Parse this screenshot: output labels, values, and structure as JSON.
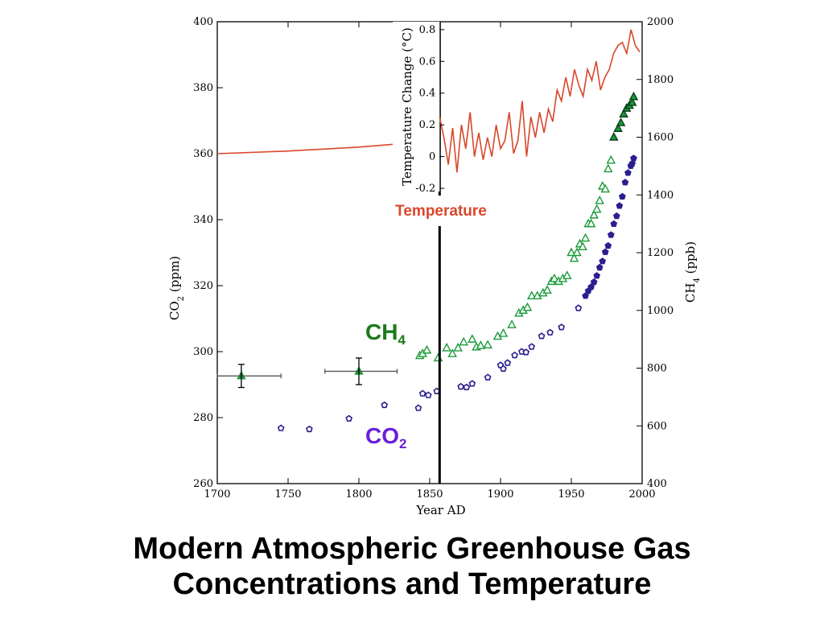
{
  "slide": {
    "title_line1": "Modern Atmospheric Greenhouse Gas",
    "title_line2": "Concentrations and Temperature"
  },
  "chart_data": {
    "type": "scatter",
    "title": "Modern Atmospheric Greenhouse Gas Concentrations and Temperature",
    "xlabel": "Year AD",
    "ylabel_left": "CO2 (ppm)",
    "ylabel_right": "CH4 (ppb)",
    "xlim": [
      1700,
      2000
    ],
    "ylim_left": [
      260,
      400
    ],
    "ylim_right": [
      400,
      2000
    ],
    "x_ticks": [
      "1700",
      "1750",
      "1800",
      "1850",
      "1900",
      "1950",
      "2000"
    ],
    "y_ticks_left": [
      "260",
      "280",
      "300",
      "320",
      "340",
      "360",
      "380",
      "400"
    ],
    "y_ticks_right": [
      "400",
      "600",
      "800",
      "1000",
      "1200",
      "1400",
      "1600",
      "1800",
      "2000"
    ],
    "divider_year": 1857,
    "labels": {
      "ch4": "CH",
      "ch4_sub": "4",
      "co2": "CO",
      "co2_sub": "2",
      "temperature": "Temperature"
    },
    "colors": {
      "co2": "#2b1f8f",
      "co2_label": "#6a1fd8",
      "ch4": "#1a9a3a",
      "ch4_label": "#1a7a1a",
      "temperature": "#d9472b"
    },
    "inset": {
      "ylabel": "Temperature Change (°C)",
      "ylim": [
        -0.22,
        0.85
      ],
      "y_ticks": [
        "-0.2",
        "0",
        "0.2",
        "0.4",
        "0.6",
        "0.8"
      ],
      "xlim": [
        1857,
        1995
      ]
    },
    "series": [
      {
        "name": "CO2",
        "axis": "left",
        "marker": "pentagon",
        "x": [
          1745,
          1765,
          1793,
          1818,
          1842,
          1845,
          1849,
          1855,
          1872,
          1876,
          1880,
          1891,
          1900,
          1902,
          1905,
          1910,
          1915,
          1918,
          1922,
          1929,
          1935,
          1943,
          1955,
          1960,
          1962,
          1964,
          1966,
          1968,
          1970,
          1972,
          1974,
          1976,
          1978,
          1980,
          1982,
          1984,
          1986,
          1988,
          1990,
          1992,
          1993,
          1994
        ],
        "y": [
          276.8,
          276.5,
          279.7,
          283.8,
          282.9,
          287.3,
          286.8,
          288.0,
          289.4,
          289.2,
          290.3,
          292.2,
          295.9,
          294.8,
          296.6,
          298.9,
          300.0,
          299.8,
          301.5,
          304.7,
          305.8,
          307.4,
          313.2,
          316.9,
          318.4,
          319.6,
          321.1,
          323.0,
          325.5,
          327.4,
          330.2,
          332.1,
          335.4,
          338.7,
          341.1,
          344.2,
          347.0,
          351.3,
          354.2,
          356.3,
          357.0,
          358.6
        ]
      },
      {
        "name": "CH4",
        "axis": "right",
        "marker": "triangle",
        "x": [
          1717,
          1800,
          1843,
          1845,
          1848,
          1856,
          1862,
          1866,
          1870,
          1874,
          1880,
          1883,
          1886,
          1891,
          1898,
          1902,
          1908,
          1913,
          1916,
          1919,
          1922,
          1926,
          1930,
          1933,
          1936,
          1938,
          1941,
          1944,
          1947,
          1950,
          1952,
          1954,
          1956,
          1958,
          1960,
          1962,
          1964,
          1966,
          1968,
          1970,
          1972,
          1974,
          1976,
          1978,
          1980,
          1983,
          1985,
          1987,
          1989,
          1991,
          1993,
          1994
        ],
        "y": [
          773,
          789,
          843,
          850,
          862,
          835,
          870,
          850,
          870,
          890,
          900,
          873,
          878,
          880,
          910,
          920,
          950,
          990,
          1000,
          1010,
          1050,
          1050,
          1060,
          1070,
          1100,
          1110,
          1100,
          1110,
          1120,
          1200,
          1180,
          1200,
          1230,
          1220,
          1250,
          1300,
          1300,
          1330,
          1350,
          1380,
          1430,
          1420,
          1490,
          1520,
          1600,
          1630,
          1650,
          1680,
          1700,
          1710,
          1720,
          1740
        ]
      },
      {
        "name": "Temperature",
        "axis": "inset",
        "type": "line",
        "x": [
          1857,
          1860,
          1863,
          1866,
          1869,
          1872,
          1875,
          1878,
          1881,
          1884,
          1887,
          1890,
          1893,
          1896,
          1899,
          1902,
          1905,
          1908,
          1911,
          1914,
          1917,
          1920,
          1923,
          1926,
          1929,
          1932,
          1935,
          1938,
          1941,
          1944,
          1947,
          1950,
          1953,
          1956,
          1959,
          1962,
          1965,
          1968,
          1971,
          1974,
          1977,
          1980,
          1983,
          1986,
          1989,
          1992,
          1995
        ],
        "y": [
          0.25,
          0.12,
          -0.05,
          0.18,
          -0.1,
          0.2,
          0.05,
          0.28,
          0.0,
          0.15,
          -0.02,
          0.12,
          0.0,
          0.2,
          0.05,
          0.1,
          0.28,
          0.02,
          0.1,
          0.35,
          0.0,
          0.25,
          0.12,
          0.28,
          0.15,
          0.3,
          0.22,
          0.42,
          0.35,
          0.5,
          0.38,
          0.55,
          0.45,
          0.38,
          0.55,
          0.48,
          0.6,
          0.42,
          0.5,
          0.55,
          0.65,
          0.7,
          0.72,
          0.65,
          0.8,
          0.7,
          0.66
        ]
      },
      {
        "name": "CO2 pre-1857 trend",
        "axis": "left",
        "type": "line",
        "x": [
          1700,
          1750,
          1800,
          1857
        ],
        "y": [
          360.0,
          360.8,
          362.0,
          364.0
        ]
      }
    ],
    "error_bars": [
      {
        "x": 1717,
        "y": 773,
        "xerr": [
          1700,
          1745
        ],
        "yerr": [
          733,
          813
        ]
      },
      {
        "x": 1800,
        "y": 789,
        "xerr": [
          1776,
          1827
        ],
        "yerr": [
          743,
          835
        ]
      }
    ]
  }
}
